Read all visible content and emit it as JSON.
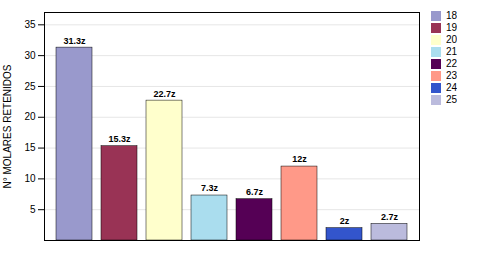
{
  "chart_data": {
    "type": "bar",
    "categories": [
      "18",
      "19",
      "20",
      "21",
      "22",
      "23",
      "24",
      "25"
    ],
    "values": [
      31.3,
      15.3,
      22.7,
      7.3,
      6.7,
      12,
      2,
      2.7
    ],
    "value_labels": [
      "31.3z",
      "15.3z",
      "22.7z",
      "7.3z",
      "6.7z",
      "12z",
      "2z",
      "2.7z"
    ],
    "colors": [
      "#9999cc",
      "#993355",
      "#ffffcc",
      "#aaddee",
      "#550055",
      "#ff9988",
      "#3355cc",
      "#bbbbdd"
    ],
    "ylabel": "N° MOLARES RETENIDOS",
    "ylim": [
      0,
      37
    ],
    "yticks": [
      5,
      10,
      15,
      20,
      25,
      30,
      35
    ],
    "grid": true,
    "legend": "upper right",
    "data_labels": true,
    "tick_labels": "y"
  }
}
